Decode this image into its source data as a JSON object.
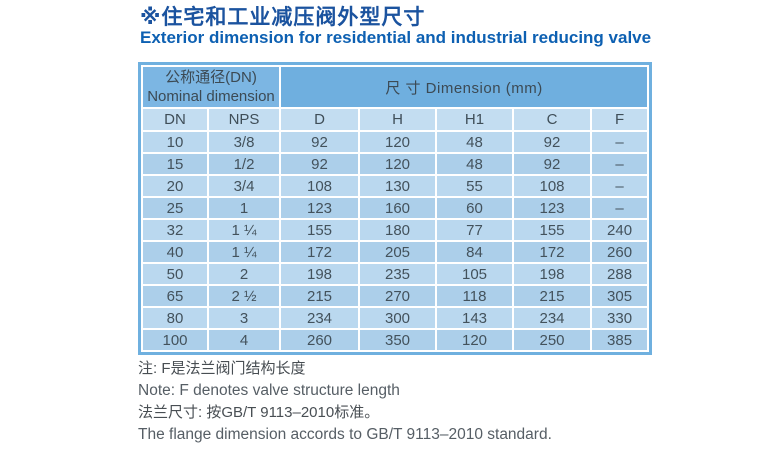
{
  "title": {
    "zh": "※住宅和工业减压阀外型尺寸",
    "en": "Exterior dimension for residential and industrial reducing valve"
  },
  "table": {
    "header": {
      "nominal_zh": "公称通径(DN)",
      "nominal_en": "Nominal dimension",
      "dimension": "尺 寸 Dimension  (mm)"
    },
    "columns": [
      "DN",
      "NPS",
      "D",
      "H",
      "H1",
      "C",
      "F"
    ],
    "rows": [
      [
        "10",
        "3/8",
        "92",
        "120",
        "48",
        "92",
        "–"
      ],
      [
        "15",
        "1/2",
        "92",
        "120",
        "48",
        "92",
        "–"
      ],
      [
        "20",
        "3/4",
        "108",
        "130",
        "55",
        "108",
        "–"
      ],
      [
        "25",
        "1",
        "123",
        "160",
        "60",
        "123",
        "–"
      ],
      [
        "32",
        "1 ¼",
        "155",
        "180",
        "77",
        "155",
        "240"
      ],
      [
        "40",
        "1 ¼",
        "172",
        "205",
        "84",
        "172",
        "260"
      ],
      [
        "50",
        "2",
        "198",
        "235",
        "105",
        "198",
        "288"
      ],
      [
        "65",
        "2 ½",
        "215",
        "270",
        "118",
        "215",
        "305"
      ],
      [
        "80",
        "3",
        "234",
        "300",
        "143",
        "234",
        "330"
      ],
      [
        "100",
        "4",
        "260",
        "350",
        "120",
        "250",
        "385"
      ]
    ]
  },
  "notes": {
    "note_zh": "注: F是法兰阀门结构长度",
    "note_en": "Note: F denotes valve structure length",
    "flange_zh": "法兰尺寸: 按GB/T 9113–2010标准。",
    "flange_en": "The flange dimension accords to GB/T 9113–2010 standard."
  },
  "colors": {
    "title_zh": "#1b539f",
    "title_en": "#0d60b2",
    "table_frame": "#6fb0df",
    "header_left_bg": "#7cb6e3",
    "header_right_bg": "#6fafdf",
    "subheader_bg": "#c3ddf1",
    "row_light_bg": "#bad8ef",
    "row_dark_bg": "#accfea",
    "table_text": "#43525c"
  }
}
